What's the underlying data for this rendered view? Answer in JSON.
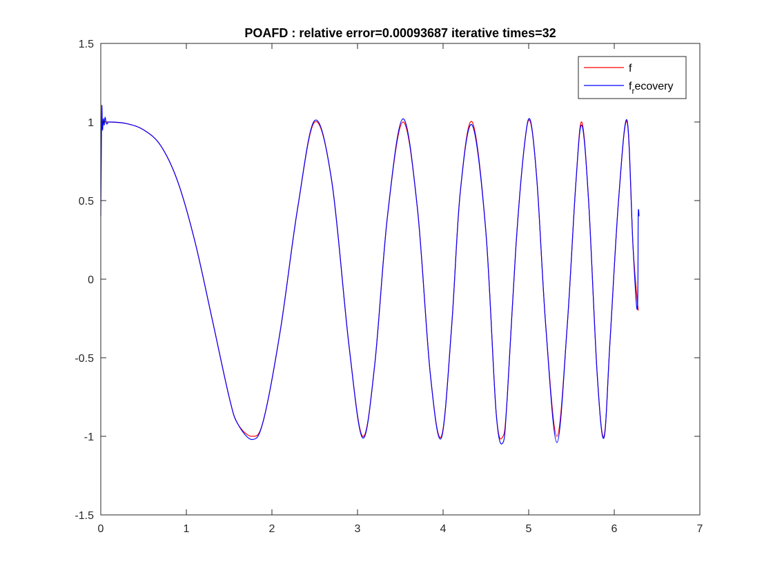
{
  "chart_data": {
    "type": "line",
    "title": "POAFD : relative error=0.00093687  iterative times=32",
    "xlabel": "",
    "ylabel": "",
    "xlim": [
      0,
      7
    ],
    "ylim": [
      -1.5,
      1.5
    ],
    "xticks": [
      0,
      1,
      2,
      3,
      4,
      5,
      6,
      7
    ],
    "xtick_labels": [
      "0",
      "1",
      "2",
      "3",
      "4",
      "5",
      "6",
      "7"
    ],
    "yticks": [
      -1.5,
      -1,
      -0.5,
      0,
      0.5,
      1,
      1.5
    ],
    "ytick_labels": [
      "-1.5",
      "-1",
      "-0.5",
      "0",
      "0.5",
      "1",
      "1.5"
    ],
    "grid": false,
    "legend": "top-right",
    "legend_entries": [
      {
        "main": "f",
        "sub": "",
        "tail": "",
        "color": "#ff0000"
      },
      {
        "main": "f",
        "sub": "r",
        "tail": "ecovery",
        "color": "#0000ff"
      }
    ],
    "series": [
      {
        "name": "f",
        "color": "#ff0000",
        "x": [
          0,
          0.1,
          0.3,
          0.5,
          0.7,
          0.9,
          1.1,
          1.3,
          1.5,
          1.6,
          1.77,
          1.9,
          2.1,
          2.3,
          2.5,
          2.7,
          2.9,
          3.06,
          3.2,
          3.35,
          3.53,
          3.7,
          3.85,
          3.98,
          4.1,
          4.2,
          4.34,
          4.5,
          4.62,
          4.7,
          4.75,
          4.85,
          4.95,
          5.02,
          5.1,
          5.2,
          5.33,
          5.45,
          5.55,
          5.62,
          5.7,
          5.8,
          5.88,
          5.95,
          6.05,
          6.15,
          6.22,
          6.28
        ],
        "y": [
          1.0,
          1.0,
          0.99,
          0.95,
          0.85,
          0.62,
          0.24,
          -0.25,
          -0.75,
          -0.92,
          -1.0,
          -0.9,
          -0.32,
          0.45,
          1.0,
          0.62,
          -0.42,
          -1.0,
          -0.55,
          0.4,
          1.0,
          0.45,
          -0.6,
          -1.0,
          -0.3,
          0.55,
          1.0,
          0.3,
          -0.85,
          -1.0,
          -0.75,
          0.2,
          0.85,
          1.0,
          0.6,
          -0.3,
          -1.0,
          -0.3,
          0.6,
          1.0,
          0.5,
          -0.6,
          -1.0,
          -0.4,
          0.5,
          1.0,
          0.2,
          -0.2
        ]
      },
      {
        "name": "f_recovery",
        "color": "#0000ff",
        "x": [
          0,
          0.005,
          0.012,
          0.02,
          0.03,
          0.04,
          0.05,
          0.065,
          0.08,
          0.1,
          0.3,
          0.5,
          0.7,
          0.9,
          1.1,
          1.3,
          1.5,
          1.6,
          1.77,
          1.9,
          2.1,
          2.3,
          2.5,
          2.7,
          2.9,
          3.06,
          3.2,
          3.35,
          3.53,
          3.7,
          3.85,
          3.98,
          4.1,
          4.2,
          4.34,
          4.5,
          4.62,
          4.7,
          4.75,
          4.85,
          4.95,
          5.02,
          5.1,
          5.2,
          5.33,
          5.45,
          5.55,
          5.62,
          5.7,
          5.8,
          5.88,
          5.95,
          6.05,
          6.15,
          6.22,
          6.27,
          6.28,
          6.29
        ],
        "y": [
          0.4,
          0.7,
          1.1,
          0.95,
          1.02,
          0.98,
          1.03,
          0.99,
          0.99,
          1.0,
          0.99,
          0.95,
          0.85,
          0.62,
          0.24,
          -0.25,
          -0.75,
          -0.92,
          -1.02,
          -0.9,
          -0.32,
          0.45,
          1.01,
          0.62,
          -0.42,
          -1.01,
          -0.55,
          0.4,
          1.02,
          0.45,
          -0.6,
          -1.01,
          -0.3,
          0.55,
          0.98,
          0.3,
          -0.85,
          -1.04,
          -0.75,
          0.2,
          0.85,
          1.01,
          0.6,
          -0.3,
          -1.04,
          -0.3,
          0.6,
          0.98,
          0.5,
          -0.6,
          -1.01,
          -0.4,
          0.5,
          1.01,
          0.2,
          -0.19,
          0.4,
          0.4
        ]
      }
    ]
  }
}
